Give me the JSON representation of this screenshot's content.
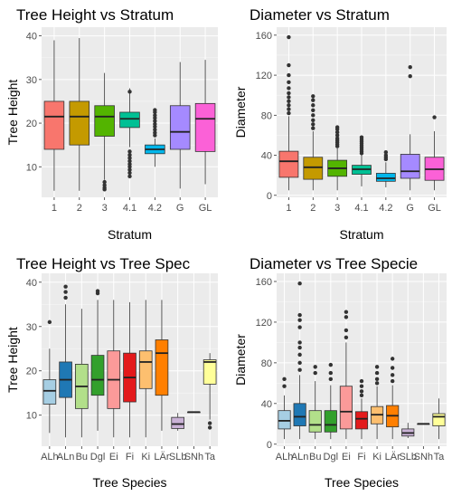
{
  "chart_data": [
    {
      "type": "boxplot",
      "title": "Tree Height vs Stratum",
      "xlabel": "Stratum",
      "ylabel": "Tree Height",
      "ylim": [
        3,
        42
      ],
      "yticks": [
        10,
        20,
        30,
        40
      ],
      "categories": [
        "1",
        "2",
        "3",
        "4.1",
        "4.2",
        "G",
        "GL"
      ],
      "colors": [
        "#f8766d",
        "#c49a00",
        "#53b400",
        "#00c094",
        "#00b6eb",
        "#a58aff",
        "#fb61d7"
      ],
      "boxes": [
        {
          "q1": 14,
          "median": 21.5,
          "q3": 25,
          "lower_whisker": 4.5,
          "upper_whisker": 39,
          "outliers": []
        },
        {
          "q1": 15,
          "median": 21.5,
          "q3": 25,
          "lower_whisker": 4.5,
          "upper_whisker": 39.5,
          "outliers": []
        },
        {
          "q1": 17,
          "median": 21.5,
          "q3": 24,
          "lower_whisker": 7,
          "upper_whisker": 31.5,
          "outliers": [
            6.5,
            5.8,
            5.2,
            4.8
          ]
        },
        {
          "q1": 19,
          "median": 21,
          "q3": 22.5,
          "lower_whisker": 14.5,
          "upper_whisker": 28,
          "outliers": [
            13.5,
            12.7,
            12,
            11.3,
            10.6,
            10,
            9.3,
            8.6,
            7.8,
            27.2
          ]
        },
        {
          "q1": 13,
          "median": 14,
          "q3": 15,
          "lower_whisker": 10,
          "upper_whisker": 16.5,
          "outliers": [
            17.2,
            17.8,
            18.5,
            19.2,
            19.8,
            20.5,
            21.2,
            21.8,
            22.5,
            23
          ]
        },
        {
          "q1": 14,
          "median": 18,
          "q3": 24,
          "lower_whisker": 5,
          "upper_whisker": 34,
          "outliers": []
        },
        {
          "q1": 13.5,
          "median": 21,
          "q3": 24.5,
          "lower_whisker": 6,
          "upper_whisker": 34.5,
          "outliers": []
        }
      ]
    },
    {
      "type": "boxplot",
      "title": "Diameter vs Stratum",
      "xlabel": "Stratum",
      "ylabel": "Diameter",
      "ylim": [
        -2,
        168
      ],
      "yticks": [
        0,
        40,
        80,
        120,
        160
      ],
      "categories": [
        "1",
        "2",
        "3",
        "4.1",
        "4.2",
        "G",
        "GL"
      ],
      "colors": [
        "#f8766d",
        "#c49a00",
        "#53b400",
        "#00c094",
        "#00b6eb",
        "#a58aff",
        "#fb61d7"
      ],
      "boxes": [
        {
          "q1": 18,
          "median": 34,
          "q3": 44,
          "lower_whisker": 5,
          "upper_whisker": 79,
          "outliers": [
            82,
            86,
            90,
            94,
            98,
            102,
            107,
            113,
            120,
            130,
            158
          ]
        },
        {
          "q1": 16,
          "median": 28,
          "q3": 38,
          "lower_whisker": 5,
          "upper_whisker": 64,
          "outliers": [
            67,
            71,
            75,
            80,
            85,
            90,
            95,
            99
          ]
        },
        {
          "q1": 19,
          "median": 27,
          "q3": 35,
          "lower_whisker": 5,
          "upper_whisker": 47,
          "outliers": [
            49,
            51,
            53,
            55,
            57,
            60,
            63,
            66,
            68
          ]
        },
        {
          "q1": 21,
          "median": 26,
          "q3": 30,
          "lower_whisker": 9,
          "upper_whisker": 40,
          "outliers": [
            42,
            44,
            46,
            48,
            50,
            52,
            54,
            56,
            58
          ]
        },
        {
          "q1": 14,
          "median": 17,
          "q3": 22,
          "lower_whisker": 8,
          "upper_whisker": 33,
          "outliers": [
            36,
            38,
            40,
            43
          ]
        },
        {
          "q1": 17,
          "median": 24,
          "q3": 41,
          "lower_whisker": 5,
          "upper_whisker": 61,
          "outliers": [
            119,
            128
          ]
        },
        {
          "q1": 15,
          "median": 26,
          "q3": 38,
          "lower_whisker": 5,
          "upper_whisker": 64,
          "outliers": [
            78
          ]
        }
      ]
    },
    {
      "type": "boxplot",
      "title": "Tree Height vs Tree Spec",
      "xlabel": "Tree Species",
      "ylabel": "Tree Height",
      "ylim": [
        3,
        42
      ],
      "yticks": [
        10,
        20,
        30,
        40
      ],
      "categories": [
        "ALh",
        "ALn",
        "Bu",
        "Dgl",
        "Ei",
        "Fi",
        "Ki",
        "LÄr",
        "SLb",
        "SNh",
        "Ta"
      ],
      "colors": [
        "#a6cee3",
        "#1f78b4",
        "#b2df8a",
        "#33a02c",
        "#fb9a99",
        "#e31a1c",
        "#fdbf6f",
        "#ff7f00",
        "#cab2d6",
        "#6a3d9a",
        "#ffff99"
      ],
      "boxes": [
        {
          "q1": 12.5,
          "median": 15.5,
          "q3": 18,
          "lower_whisker": 6,
          "upper_whisker": 25,
          "outliers": [
            31
          ]
        },
        {
          "q1": 14,
          "median": 18,
          "q3": 22,
          "lower_whisker": 5,
          "upper_whisker": 35,
          "outliers": [
            36.5,
            37.8,
            39
          ]
        },
        {
          "q1": 11.5,
          "median": 16.5,
          "q3": 21.5,
          "lower_whisker": 5,
          "upper_whisker": 34,
          "outliers": []
        },
        {
          "q1": 14.5,
          "median": 18,
          "q3": 23.5,
          "lower_whisker": 6.5,
          "upper_whisker": 36,
          "outliers": [
            37.5,
            38
          ]
        },
        {
          "q1": 11.5,
          "median": 18,
          "q3": 24.5,
          "lower_whisker": 5,
          "upper_whisker": 36,
          "outliers": []
        },
        {
          "q1": 13,
          "median": 18.5,
          "q3": 24,
          "lower_whisker": 5,
          "upper_whisker": 35.5,
          "outliers": []
        },
        {
          "q1": 16,
          "median": 22,
          "q3": 24.5,
          "lower_whisker": 5,
          "upper_whisker": 36,
          "outliers": []
        },
        {
          "q1": 14.5,
          "median": 24,
          "q3": 27,
          "lower_whisker": 6.5,
          "upper_whisker": 36,
          "outliers": []
        },
        {
          "q1": 7,
          "median": 8,
          "q3": 9.5,
          "lower_whisker": 6.5,
          "upper_whisker": 10.5,
          "outliers": []
        },
        {
          "q1": 10.7,
          "median": 10.7,
          "q3": 10.7,
          "lower_whisker": 10.7,
          "upper_whisker": 10.7,
          "outliers": []
        },
        {
          "q1": 17,
          "median": 22,
          "q3": 22.5,
          "lower_whisker": 9,
          "upper_whisker": 24,
          "outliers": [
            8.2,
            7.2
          ]
        }
      ]
    },
    {
      "type": "boxplot",
      "title": "Diameter vs Tree Specie",
      "xlabel": "Tree Species",
      "ylabel": "Diameter",
      "ylim": [
        -2,
        168
      ],
      "yticks": [
        0,
        40,
        80,
        120,
        160
      ],
      "categories": [
        "ALh",
        "ALn",
        "Bu",
        "Dgl",
        "Ei",
        "Fi",
        "Ki",
        "LÄr",
        "SLb",
        "SNh",
        "Ta"
      ],
      "colors": [
        "#a6cee3",
        "#1f78b4",
        "#b2df8a",
        "#33a02c",
        "#fb9a99",
        "#e31a1c",
        "#fdbf6f",
        "#ff7f00",
        "#cab2d6",
        "#6a3d9a",
        "#ffff99"
      ],
      "boxes": [
        {
          "q1": 15,
          "median": 23,
          "q3": 33,
          "lower_whisker": 5,
          "upper_whisker": 48,
          "outliers": [
            57,
            64
          ]
        },
        {
          "q1": 18,
          "median": 27,
          "q3": 40,
          "lower_whisker": 5,
          "upper_whisker": 68,
          "outliers": [
            73,
            80,
            88,
            95,
            100,
            115,
            122,
            127,
            158
          ]
        },
        {
          "q1": 12,
          "median": 19,
          "q3": 33,
          "lower_whisker": 5,
          "upper_whisker": 62,
          "outliers": [
            70,
            76
          ]
        },
        {
          "q1": 12,
          "median": 19,
          "q3": 33,
          "lower_whisker": 5,
          "upper_whisker": 58,
          "outliers": [
            64,
            70,
            78
          ]
        },
        {
          "q1": 15,
          "median": 32,
          "q3": 57,
          "lower_whisker": 5,
          "upper_whisker": 100,
          "outliers": [
            105,
            112,
            125,
            130
          ]
        },
        {
          "q1": 15,
          "median": 25,
          "q3": 32,
          "lower_whisker": 5,
          "upper_whisker": 45,
          "outliers": [
            48,
            52,
            57,
            62
          ]
        },
        {
          "q1": 20,
          "median": 29,
          "q3": 37,
          "lower_whisker": 5,
          "upper_whisker": 57,
          "outliers": [
            60,
            64,
            70,
            76
          ]
        },
        {
          "q1": 17,
          "median": 28,
          "q3": 38,
          "lower_whisker": 5,
          "upper_whisker": 58,
          "outliers": [
            62,
            68,
            75,
            84
          ]
        },
        {
          "q1": 8,
          "median": 11,
          "q3": 15,
          "lower_whisker": 6,
          "upper_whisker": 21,
          "outliers": []
        },
        {
          "q1": 20,
          "median": 20,
          "q3": 20,
          "lower_whisker": 20,
          "upper_whisker": 20,
          "outliers": []
        },
        {
          "q1": 18,
          "median": 27,
          "q3": 30,
          "lower_whisker": 5,
          "upper_whisker": 45,
          "outliers": []
        }
      ]
    }
  ]
}
